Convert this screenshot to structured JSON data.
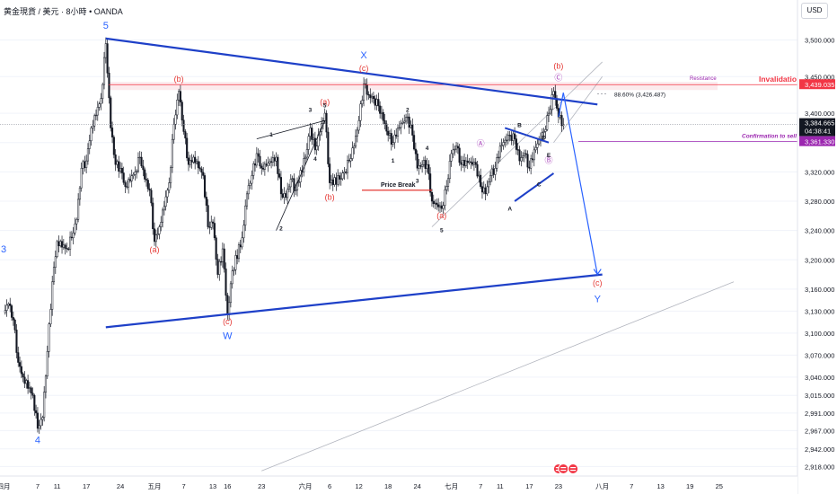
{
  "header": {
    "symbol": "黄金現貨 / 美元",
    "interval": "8小時",
    "broker": "OANDA",
    "separator": "•"
  },
  "currency_button": "USD",
  "colors": {
    "up": "#131722",
    "down": "#131722",
    "trendline": "#1e40c8",
    "wave_blue": "#2962ff",
    "wave_red": "#e53935",
    "wave_purple": "#ab47bc",
    "invalidation": "#f23645",
    "confirmation": "#9c27b0",
    "channel": "#b2b5be"
  },
  "chart_data": {
    "type": "candlestick",
    "symbol": "黄金現貨 / 美元",
    "interval": "8小時",
    "currency": "USD",
    "ylim": [
      2905,
      3530
    ],
    "y_ticks": [
      2918.0,
      2942.0,
      2967.0,
      2991.0,
      3015.0,
      3040.0,
      3070.0,
      3100.0,
      3130.0,
      3160.0,
      3200.0,
      3240.0,
      3280.0,
      3320.0,
      3360.0,
      3400.0,
      3450.0,
      3500.0
    ],
    "y_tick_labels": [
      "2,918.000",
      "2,942.000",
      "2,967.000",
      "2,991.000",
      "3,015.000",
      "3,040.000",
      "3,070.000",
      "3,100.000",
      "3,130.000",
      "3,160.000",
      "3,200.000",
      "3,240.000",
      "3,280.000",
      "3,320.000",
      "3,360.000",
      "3,400.000",
      "3,450.000",
      "3,500.000"
    ],
    "x_ticks": [
      {
        "date": "2025-03-31",
        "label": "四月"
      },
      {
        "date": "2025-04-07",
        "label": "7"
      },
      {
        "date": "2025-04-11",
        "label": "11"
      },
      {
        "date": "2025-04-17",
        "label": "17"
      },
      {
        "date": "2025-04-24",
        "label": "24"
      },
      {
        "date": "2025-05-01",
        "label": "五月"
      },
      {
        "date": "2025-05-07",
        "label": "7"
      },
      {
        "date": "2025-05-13",
        "label": "13"
      },
      {
        "date": "2025-05-16",
        "label": "16"
      },
      {
        "date": "2025-05-23",
        "label": "23"
      },
      {
        "date": "2025-06-01",
        "label": "六月"
      },
      {
        "date": "2025-06-06",
        "label": "6"
      },
      {
        "date": "2025-06-12",
        "label": "12"
      },
      {
        "date": "2025-06-18",
        "label": "18"
      },
      {
        "date": "2025-06-24",
        "label": "24"
      },
      {
        "date": "2025-07-01",
        "label": "七月"
      },
      {
        "date": "2025-07-07",
        "label": "7"
      },
      {
        "date": "2025-07-11",
        "label": "11"
      },
      {
        "date": "2025-07-17",
        "label": "17"
      },
      {
        "date": "2025-07-23",
        "label": "23"
      },
      {
        "date": "2025-08-01",
        "label": "八月"
      },
      {
        "date": "2025-08-07",
        "label": "7"
      },
      {
        "date": "2025-08-13",
        "label": "13"
      },
      {
        "date": "2025-08-19",
        "label": "19"
      },
      {
        "date": "2025-08-25",
        "label": "25"
      }
    ],
    "price_path": [
      [
        "2025-03-31",
        3128
      ],
      [
        "2025-04-01",
        3140
      ],
      [
        "2025-04-02",
        3118
      ],
      [
        "2025-04-03",
        3060
      ],
      [
        "2025-04-04",
        3040
      ],
      [
        "2025-04-06",
        3015
      ],
      [
        "2025-04-07",
        2970
      ],
      [
        "2025-04-08",
        2985
      ],
      [
        "2025-04-09",
        3075
      ],
      [
        "2025-04-10",
        3170
      ],
      [
        "2025-04-11",
        3225
      ],
      [
        "2025-04-13",
        3215
      ],
      [
        "2025-04-14",
        3230
      ],
      [
        "2025-04-15",
        3255
      ],
      [
        "2025-04-16",
        3325
      ],
      [
        "2025-04-17",
        3335
      ],
      [
        "2025-04-18",
        3380
      ],
      [
        "2025-04-20",
        3420
      ],
      [
        "2025-04-21",
        3495
      ],
      [
        "2025-04-22",
        3380
      ],
      [
        "2025-04-23",
        3330
      ],
      [
        "2025-04-24",
        3325
      ],
      [
        "2025-04-25",
        3300
      ],
      [
        "2025-04-27",
        3320
      ],
      [
        "2025-04-28",
        3340
      ],
      [
        "2025-04-29",
        3310
      ],
      [
        "2025-04-30",
        3295
      ],
      [
        "2025-05-01",
        3225
      ],
      [
        "2025-05-02",
        3245
      ],
      [
        "2025-05-04",
        3305
      ],
      [
        "2025-05-05",
        3385
      ],
      [
        "2025-05-06",
        3430
      ],
      [
        "2025-05-07",
        3375
      ],
      [
        "2025-05-08",
        3330
      ],
      [
        "2025-05-09",
        3340
      ],
      [
        "2025-05-11",
        3315
      ],
      [
        "2025-05-12",
        3245
      ],
      [
        "2025-05-13",
        3250
      ],
      [
        "2025-05-14",
        3180
      ],
      [
        "2025-05-15",
        3215
      ],
      [
        "2025-05-16",
        3125
      ],
      [
        "2025-05-17",
        3185
      ],
      [
        "2025-05-19",
        3230
      ],
      [
        "2025-05-20",
        3290
      ],
      [
        "2025-05-21",
        3315
      ],
      [
        "2025-05-22",
        3345
      ],
      [
        "2025-05-23",
        3325
      ],
      [
        "2025-05-26",
        3340
      ],
      [
        "2025-05-27",
        3290
      ],
      [
        "2025-05-28",
        3285
      ],
      [
        "2025-05-29",
        3310
      ],
      [
        "2025-05-30",
        3295
      ],
      [
        "2025-06-01",
        3340
      ],
      [
        "2025-06-02",
        3380
      ],
      [
        "2025-06-03",
        3350
      ],
      [
        "2025-06-04",
        3375
      ],
      [
        "2025-06-05",
        3400
      ],
      [
        "2025-06-06",
        3305
      ],
      [
        "2025-06-08",
        3310
      ],
      [
        "2025-06-09",
        3320
      ],
      [
        "2025-06-10",
        3335
      ],
      [
        "2025-06-11",
        3355
      ],
      [
        "2025-06-12",
        3390
      ],
      [
        "2025-06-13",
        3440
      ],
      [
        "2025-06-14",
        3425
      ],
      [
        "2025-06-15",
        3420
      ],
      [
        "2025-06-16",
        3410
      ],
      [
        "2025-06-17",
        3390
      ],
      [
        "2025-06-18",
        3370
      ],
      [
        "2025-06-19",
        3360
      ],
      [
        "2025-06-20",
        3380
      ],
      [
        "2025-06-22",
        3395
      ],
      [
        "2025-06-23",
        3370
      ],
      [
        "2025-06-24",
        3325
      ],
      [
        "2025-06-25",
        3330
      ],
      [
        "2025-06-26",
        3330
      ],
      [
        "2025-06-27",
        3280
      ],
      [
        "2025-06-29",
        3270
      ],
      [
        "2025-06-30",
        3300
      ],
      [
        "2025-07-01",
        3345
      ],
      [
        "2025-07-02",
        3355
      ],
      [
        "2025-07-03",
        3330
      ],
      [
        "2025-07-04",
        3335
      ],
      [
        "2025-07-06",
        3330
      ],
      [
        "2025-07-07",
        3300
      ],
      [
        "2025-07-08",
        3290
      ],
      [
        "2025-07-09",
        3315
      ],
      [
        "2025-07-10",
        3325
      ],
      [
        "2025-07-11",
        3355
      ],
      [
        "2025-07-13",
        3370
      ],
      [
        "2025-07-14",
        3365
      ],
      [
        "2025-07-15",
        3335
      ],
      [
        "2025-07-16",
        3345
      ],
      [
        "2025-07-17",
        3325
      ],
      [
        "2025-07-18",
        3350
      ],
      [
        "2025-07-20",
        3375
      ],
      [
        "2025-07-21",
        3400
      ],
      [
        "2025-07-22",
        3430
      ],
      [
        "2025-07-23",
        3395
      ],
      [
        "2025-07-24",
        3384.665
      ]
    ],
    "last_price": "3,384.665",
    "countdown": "04:38:41",
    "trendlines": [
      {
        "name": "upper-triangle-line",
        "from": [
          "2025-04-21",
          3502
        ],
        "to": [
          "2025-07-31",
          3412
        ]
      },
      {
        "name": "lower-triangle-line",
        "from": [
          "2025-04-21",
          3108
        ],
        "to": [
          "2025-08-01",
          3180
        ]
      },
      {
        "name": "projection-arrow",
        "from": [
          "2025-07-24",
          3428
        ],
        "to": [
          "2025-07-31",
          3180
        ]
      },
      {
        "name": "projection-wick",
        "from": [
          "2025-07-23",
          3395
        ],
        "to": [
          "2025-07-24",
          3428
        ]
      },
      {
        "name": "minor-channel-a",
        "from": [
          "2025-07-14",
          3280
        ],
        "to": [
          "2025-07-22",
          3318
        ]
      },
      {
        "name": "minor-channel-b",
        "from": [
          "2025-07-12",
          3380
        ],
        "to": [
          "2025-07-21",
          3360
        ]
      },
      {
        "name": "wedge-upper",
        "from": [
          "2025-05-22",
          3365
        ],
        "to": [
          "2025-06-05",
          3390
        ]
      },
      {
        "name": "wedge-lower",
        "from": [
          "2025-05-26",
          3240
        ],
        "to": [
          "2025-06-05",
          3390
        ]
      },
      {
        "name": "channel-gray-1",
        "from": [
          "2025-06-27",
          3245
        ],
        "to": [
          "2025-08-01",
          3470
        ]
      },
      {
        "name": "channel-gray-2",
        "from": [
          "2025-07-22",
          3360
        ],
        "to": [
          "2025-08-01",
          3450
        ]
      },
      {
        "name": "long-gray",
        "from": [
          "2025-05-23",
          2912
        ],
        "to": [
          "2025-08-28",
          3170
        ]
      }
    ],
    "horizontal_levels": [
      {
        "name": "invalidation",
        "label": "Invalidation",
        "value": 3439.035,
        "axis_label": "3,439.035"
      },
      {
        "name": "resistance",
        "label": "Resistance",
        "value": 3437
      },
      {
        "name": "confirmation",
        "label": "Confirmation to sell",
        "value": 3361.33,
        "axis_label": "3,361.330"
      },
      {
        "name": "price-break",
        "label": "Price Break",
        "value": 3295
      },
      {
        "name": "retracement",
        "label": "88.60% (3,426.487)",
        "value": 3426.487
      }
    ],
    "wave_labels": [
      {
        "text": "3",
        "date": "2025-03-31",
        "price": 3210,
        "color": "wave_blue"
      },
      {
        "text": "4",
        "date": "2025-04-07",
        "price": 2950,
        "color": "wave_blue"
      },
      {
        "text": "5",
        "date": "2025-04-21",
        "price": 3515,
        "color": "wave_blue"
      },
      {
        "text": "W",
        "date": "2025-05-16",
        "price": 3092,
        "color": "wave_blue"
      },
      {
        "text": "X",
        "date": "2025-06-13",
        "price": 3475,
        "color": "wave_blue"
      },
      {
        "text": "Y",
        "date": "2025-07-31",
        "price": 3142,
        "color": "wave_blue"
      },
      {
        "text": "(b)",
        "date": "2025-05-06",
        "price": 3443,
        "color": "wave_red"
      },
      {
        "text": "(a)",
        "date": "2025-05-01",
        "price": 3210,
        "color": "wave_red"
      },
      {
        "text": "(c)",
        "date": "2025-05-16",
        "price": 3112,
        "color": "wave_red"
      },
      {
        "text": "(a)",
        "date": "2025-06-05",
        "price": 3412,
        "color": "wave_red"
      },
      {
        "text": "(b)",
        "date": "2025-06-06",
        "price": 3282,
        "color": "wave_red"
      },
      {
        "text": "(c)",
        "date": "2025-06-13",
        "price": 3458,
        "color": "wave_red"
      },
      {
        "text": "(a)",
        "date": "2025-06-29",
        "price": 3257,
        "color": "wave_red"
      },
      {
        "text": "(b)",
        "date": "2025-07-23",
        "price": 3461,
        "color": "wave_red"
      },
      {
        "text": "(c)",
        "date": "2025-07-31",
        "price": 3165,
        "color": "wave_red"
      },
      {
        "text": "Ⓐ",
        "date": "2025-07-07",
        "price": 3355,
        "color": "wave_purple"
      },
      {
        "text": "Ⓒ",
        "date": "2025-07-23",
        "price": 3445,
        "color": "wave_purple"
      },
      {
        "text": "Ⓑ",
        "date": "2025-07-21",
        "price": 3332,
        "color": "wave_purple"
      },
      {
        "text": "1",
        "date": "2025-05-25",
        "price": 3368,
        "color": "black"
      },
      {
        "text": "2",
        "date": "2025-05-27",
        "price": 3240,
        "color": "black"
      },
      {
        "text": "3",
        "date": "2025-06-02",
        "price": 3402,
        "color": "black"
      },
      {
        "text": "4",
        "date": "2025-06-03",
        "price": 3335,
        "color": "black"
      },
      {
        "text": "5",
        "date": "2025-06-05",
        "price": 3408,
        "color": "black"
      },
      {
        "text": "1",
        "date": "2025-06-19",
        "price": 3333,
        "color": "black"
      },
      {
        "text": "2",
        "date": "2025-06-22",
        "price": 3402,
        "color": "black"
      },
      {
        "text": "3",
        "date": "2025-06-24",
        "price": 3305,
        "color": "black"
      },
      {
        "text": "4",
        "date": "2025-06-26",
        "price": 3350,
        "color": "black"
      },
      {
        "text": "5",
        "date": "2025-06-29",
        "price": 3238,
        "color": "black"
      },
      {
        "text": "A",
        "date": "2025-07-13",
        "price": 3267,
        "color": "black"
      },
      {
        "text": "B",
        "date": "2025-07-15",
        "price": 3381,
        "color": "black"
      },
      {
        "text": "C",
        "date": "2025-07-19",
        "price": 3300,
        "color": "black"
      },
      {
        "text": "D",
        "date": "2025-07-20",
        "price": 3364,
        "color": "black"
      },
      {
        "text": "E",
        "date": "2025-07-21",
        "price": 3340,
        "color": "black"
      }
    ],
    "events": [
      {
        "date": "2025-07-23",
        "icon": "us-flag-icon"
      },
      {
        "date": "2025-07-24",
        "icon": "us-flag-icon"
      },
      {
        "date": "2025-07-26",
        "icon": "us-flag-icon"
      }
    ]
  }
}
